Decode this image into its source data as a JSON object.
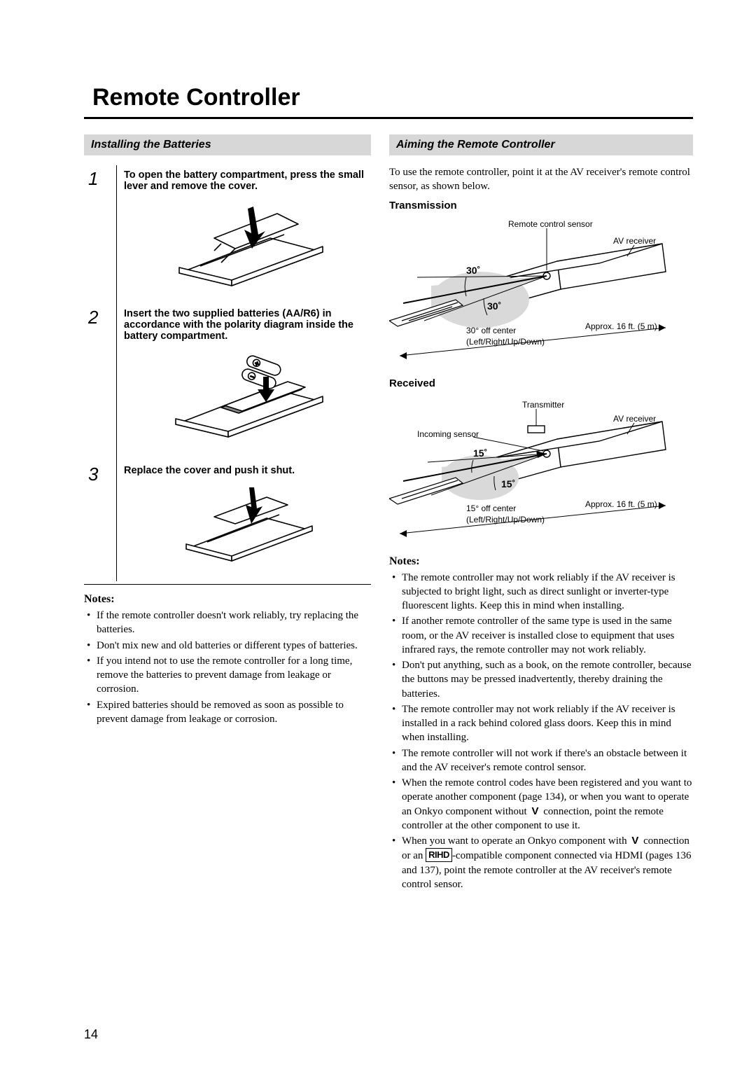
{
  "page_title": "Remote Controller",
  "page_number": "14",
  "left": {
    "section_title": "Installing the Batteries",
    "steps": [
      {
        "num": "1",
        "text": "To open the battery compartment, press the small lever and remove the cover."
      },
      {
        "num": "2",
        "text": "Insert the two supplied batteries (AA/R6) in accordance with the polarity diagram inside the battery compartment."
      },
      {
        "num": "3",
        "text": "Replace the cover and push it shut."
      }
    ],
    "notes_title": "Notes:",
    "notes": [
      "If the remote controller doesn't work reliably, try replacing the batteries.",
      "Don't mix new and old batteries or different types of batteries.",
      "If you intend not to use the remote controller for a long time, remove the batteries to prevent damage from leakage or corrosion.",
      "Expired batteries should be removed as soon as possible to prevent damage from leakage or corrosion."
    ]
  },
  "right": {
    "section_title": "Aiming the Remote Controller",
    "intro": "To use the remote controller, point it at the AV receiver's remote control sensor, as shown below.",
    "transmission": {
      "title": "Transmission",
      "sensor_label": "Remote control sensor",
      "receiver_label": "AV receiver",
      "angle": "30˚",
      "offcenter": "30° off center",
      "orientation": "(Left/Right/Up/Down)",
      "distance": "Approx. 16 ft. (5 m)"
    },
    "received": {
      "title": "Received",
      "transmitter_label": "Transmitter",
      "receiver_label": "AV receiver",
      "incoming_label": "Incoming sensor",
      "angle": "15˚",
      "offcenter": "15° off center",
      "orientation": "(Left/Right/Up/Down)",
      "distance": "Approx. 16 ft. (5 m)"
    },
    "notes_title": "Notes:",
    "notes": [
      "The remote controller may not work reliably if the AV receiver is subjected to bright light, such as direct sunlight or inverter-type fluorescent lights. Keep this in mind when installing.",
      "If another remote controller of the same type is used in the same room, or the AV receiver is installed close to equipment that uses infrared rays, the remote controller may not work reliably.",
      "Don't put anything, such as a book, on the remote controller, because the buttons may be pressed inadvertently, thereby draining the batteries.",
      "The remote controller may not work reliably if the AV receiver is installed in a rack behind colored glass doors. Keep this in mind when installing.",
      "The remote controller will not work if there's an obstacle between it and the AV receiver's remote control sensor.",
      "When the remote control codes have been registered and you want to operate another component (page 134), or when you want to operate an Onkyo component without  V  connection, point the remote controller at the other component to use it.",
      "When you want to operate an Onkyo component with  V  connection or an __RIHD__-compatible component connected via HDMI (pages 136 and 137), point the remote controller at the AV receiver's remote control sensor."
    ]
  },
  "svg": {
    "remote_stroke": "#000",
    "remote_fill": "#fff",
    "shade": "#d9d9d9",
    "angle_font": "bold 13px Helvetica, Arial",
    "label_font": "12px Helvetica, Arial"
  }
}
